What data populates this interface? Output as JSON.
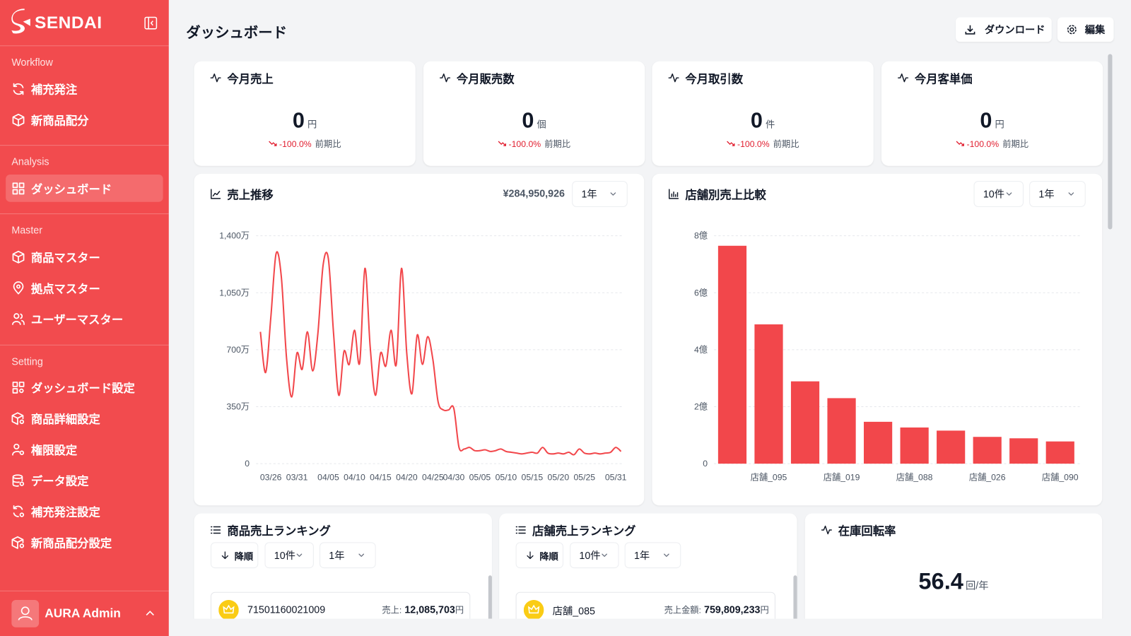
{
  "sidebar": {
    "brand": "SENDAI",
    "sections": [
      {
        "title": "Workflow",
        "items": [
          {
            "label": "補充発注"
          },
          {
            "label": "新商品配分"
          }
        ]
      },
      {
        "title": "Analysis",
        "items": [
          {
            "label": "ダッシュボード",
            "active": true
          }
        ]
      },
      {
        "title": "Master",
        "items": [
          {
            "label": "商品マスター"
          },
          {
            "label": "拠点マスター"
          },
          {
            "label": "ユーザーマスター"
          }
        ]
      },
      {
        "title": "Setting",
        "items": [
          {
            "label": "ダッシュボード設定"
          },
          {
            "label": "商品詳細設定"
          },
          {
            "label": "権限設定"
          },
          {
            "label": "データ設定"
          },
          {
            "label": "補充発注設定"
          },
          {
            "label": "新商品配分設定"
          }
        ]
      }
    ],
    "user": "AURA Admin"
  },
  "header": {
    "title": "ダッシュボード",
    "buttons": [
      "ダウンロード",
      "編集"
    ]
  },
  "kpis": [
    {
      "title": "今月売上",
      "value": 0,
      "unit": "円",
      "change": "-100.0%",
      "comparison": "前期比"
    },
    {
      "title": "今月販売数",
      "value": 0,
      "unit": "個",
      "change": "-100.0%",
      "comparison": "前期比"
    },
    {
      "title": "今月取引数",
      "value": 0,
      "unit": "件",
      "change": "-100.0%",
      "comparison": "前期比"
    },
    {
      "title": "今月客単価",
      "value": 0,
      "unit": "円",
      "change": "-100.0%",
      "comparison": "前期比"
    }
  ],
  "chart_data": [
    {
      "type": "line",
      "title": "売上推移",
      "total": "¥284,950,926",
      "filters": [
        "1年"
      ],
      "color": "#f2474b",
      "grid": true,
      "categories": [
        null,
        null,
        "03/26",
        null,
        null,
        null,
        null,
        "03/31",
        null,
        null,
        null,
        null,
        null,
        "04/05",
        null,
        null,
        null,
        null,
        "04/10",
        null,
        null,
        null,
        null,
        "04/15",
        null,
        null,
        null,
        null,
        "04/20",
        null,
        null,
        null,
        null,
        "04/25",
        null,
        null,
        null,
        "04/30",
        null,
        null,
        null,
        null,
        "05/05",
        null,
        null,
        null,
        null,
        "05/10",
        null,
        null,
        null,
        null,
        "05/15",
        null,
        null,
        null,
        null,
        "05/20",
        null,
        null,
        null,
        null,
        "05/25",
        null,
        null,
        null,
        null,
        null,
        "05/31",
        null
      ],
      "values": [
        810,
        560,
        900,
        1290,
        1150,
        650,
        410,
        680,
        580,
        810,
        570,
        800,
        1220,
        1260,
        800,
        420,
        690,
        610,
        820,
        620,
        1200,
        720,
        420,
        680,
        600,
        820,
        610,
        1200,
        680,
        430,
        790,
        610,
        780,
        640,
        380,
        330,
        330,
        340,
        100,
        90,
        100,
        80,
        80,
        85,
        75,
        80,
        90,
        75,
        70,
        65,
        60,
        65,
        70,
        65,
        100,
        65,
        60,
        65,
        60,
        70,
        55,
        90,
        65,
        60,
        65,
        60,
        65,
        70,
        100,
        75
      ],
      "ylim": [
        0,
        1400
      ],
      "yticks": [
        0,
        {
          "value": 350,
          "label": "350万"
        },
        {
          "value": 700,
          "label": "700万"
        },
        {
          "value": 1050,
          "label": "1,050万"
        },
        {
          "value": 1400,
          "label": "1,400万"
        }
      ]
    },
    {
      "type": "bar",
      "title": "店舗別売上比較",
      "filters": [
        "10件",
        "1年"
      ],
      "color": "#f2474b",
      "grid": true,
      "categories": [
        null,
        "店舗_095",
        null,
        "店舗_019",
        null,
        "店舗_088",
        null,
        "店舗_026",
        null,
        "店舗_090"
      ],
      "values": [
        7.65,
        4.89,
        2.89,
        2.3,
        1.47,
        1.27,
        1.16,
        0.94,
        0.89,
        0.78
      ],
      "ylim": [
        0,
        8
      ],
      "yticks": [
        0,
        {
          "value": 2,
          "label": "2億"
        },
        {
          "value": 4,
          "label": "4億"
        },
        {
          "value": 6,
          "label": "6億"
        },
        {
          "value": 8,
          "label": "8億"
        }
      ]
    }
  ],
  "rankings": [
    {
      "title": "商品売上ランキング",
      "sort": "降順",
      "filters": [
        "10件",
        "1年"
      ],
      "items": [
        {
          "name": "71501160021009",
          "metric": "売上:",
          "value": "12,085,703",
          "unit": "円"
        }
      ]
    },
    {
      "title": "店舗売上ランキング",
      "sort": "降順",
      "filters": [
        "10件",
        "1年"
      ],
      "items": [
        {
          "name": "店舗_085",
          "metric": "売上金額:",
          "value": "759,809,233",
          "unit": "円"
        }
      ]
    }
  ],
  "turnover": {
    "title": "在庫回転率",
    "value": 56.4,
    "unit": "回/年"
  }
}
